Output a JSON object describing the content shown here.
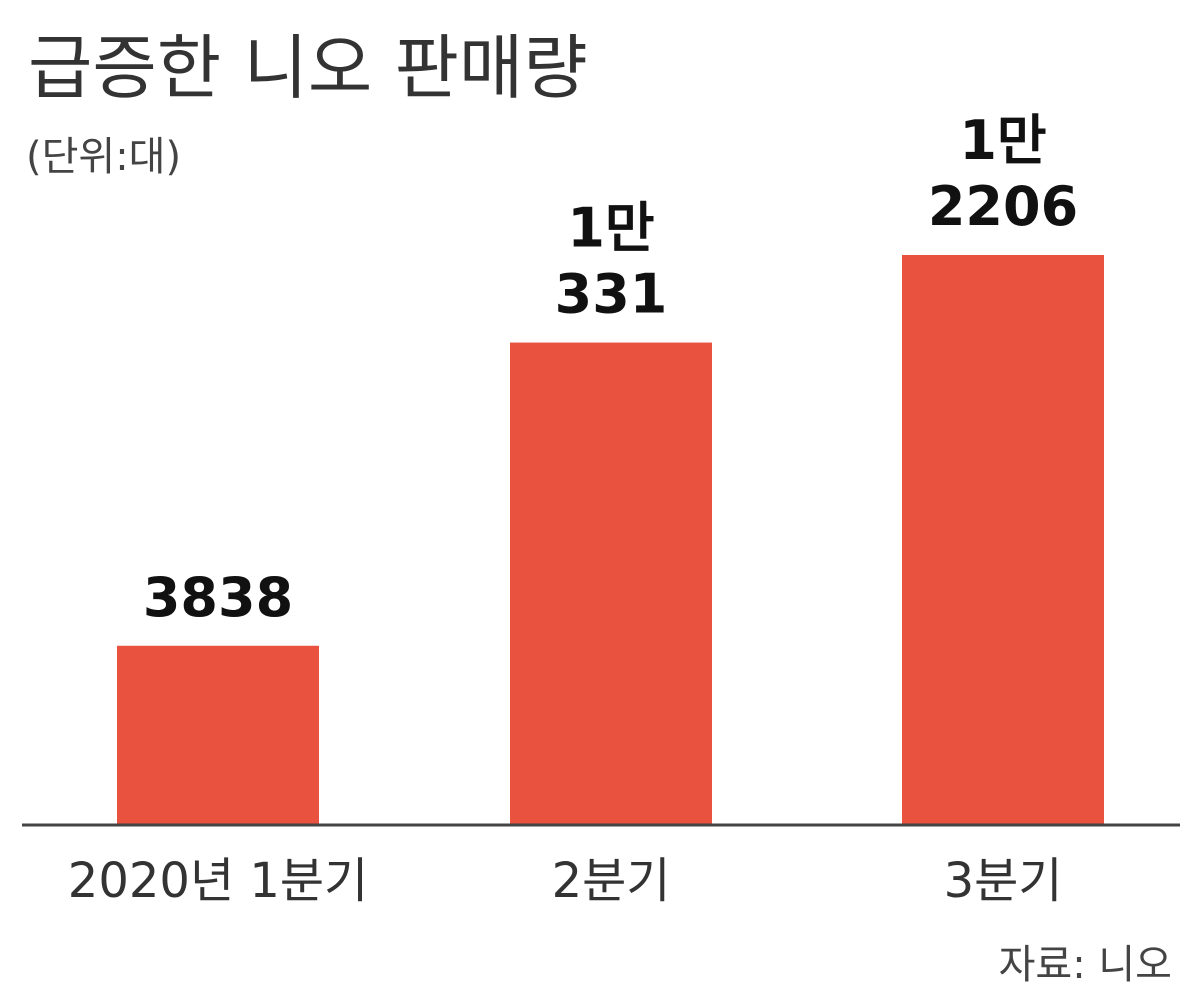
{
  "chart_data": {
    "type": "bar",
    "title": "급증한 니오 판매량",
    "unit_label": "(단위:대)",
    "categories": [
      "2020년 1분기",
      "2분기",
      "3분기"
    ],
    "values": [
      3838,
      10331,
      12206
    ],
    "data_labels": [
      [
        "3838"
      ],
      [
        "1만",
        "331"
      ],
      [
        "1만",
        "2206"
      ]
    ],
    "bar_color": "#e8523f",
    "ylim": [
      0,
      14000
    ],
    "grid": false,
    "source": "자료: 니오"
  }
}
